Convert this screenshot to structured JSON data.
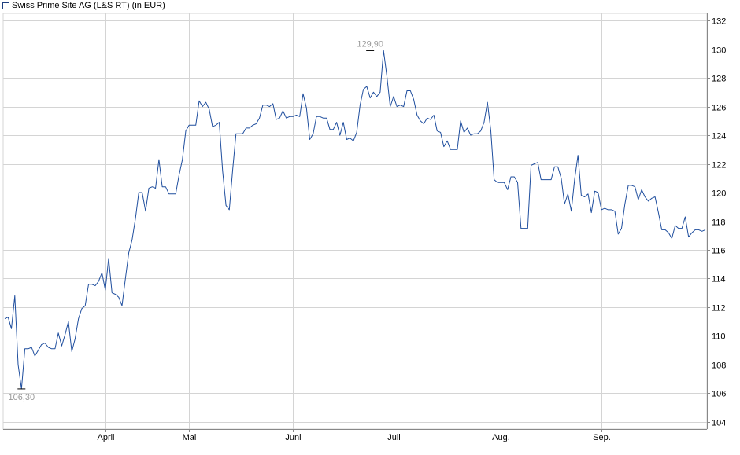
{
  "legend": {
    "label": "Swiss Prime Site AG (L&S RT) (in EUR)"
  },
  "colors": {
    "series": "#1f4e9e",
    "grid": "#d4d4d4",
    "axis": "#888888",
    "annotation": "#999999"
  },
  "chart_data": {
    "type": "line",
    "title": "",
    "xlabel": "",
    "ylabel": "",
    "grid": true,
    "legend_position": "top-left",
    "ylim": [
      103.5,
      132.5
    ],
    "y_ticks": [
      104,
      106,
      108,
      110,
      112,
      114,
      116,
      118,
      120,
      122,
      124,
      126,
      128,
      130,
      132
    ],
    "x_ticks": [
      {
        "label": "April",
        "index": 30
      },
      {
        "label": "Mai",
        "index": 55
      },
      {
        "label": "Juni",
        "index": 86
      },
      {
        "label": "Juli",
        "index": 116
      },
      {
        "label": "Aug.",
        "index": 148
      },
      {
        "label": "Sep.",
        "index": 178
      }
    ],
    "annotations": [
      {
        "text": "129,90",
        "index": 109,
        "value": 129.9,
        "position": "above"
      },
      {
        "text": "106,30",
        "index": 5,
        "value": 106.3,
        "position": "below"
      }
    ],
    "series": [
      {
        "name": "Swiss Prime Site AG (L&S RT) (in EUR)",
        "values": [
          111.2,
          111.3,
          110.5,
          112.8,
          108.0,
          106.3,
          109.1,
          109.1,
          109.2,
          108.6,
          109.0,
          109.4,
          109.5,
          109.2,
          109.1,
          109.1,
          110.2,
          109.3,
          110.1,
          111.0,
          108.9,
          109.8,
          111.2,
          111.9,
          112.1,
          113.6,
          113.6,
          113.5,
          113.8,
          114.4,
          113.2,
          115.4,
          113.0,
          112.9,
          112.7,
          112.1,
          114.0,
          115.8,
          116.7,
          118.2,
          120.0,
          120.0,
          118.7,
          120.3,
          120.4,
          120.3,
          122.3,
          120.4,
          120.4,
          119.9,
          119.9,
          119.9,
          121.2,
          122.3,
          124.3,
          124.7,
          124.7,
          124.7,
          126.4,
          126.0,
          126.3,
          125.8,
          124.6,
          124.7,
          124.9,
          121.5,
          119.1,
          118.8,
          121.6,
          124.1,
          124.1,
          124.1,
          124.5,
          124.5,
          124.7,
          124.8,
          125.2,
          126.1,
          126.1,
          126.0,
          126.2,
          125.1,
          125.2,
          125.7,
          125.2,
          125.3,
          125.3,
          125.4,
          125.3,
          126.9,
          125.9,
          123.7,
          124.1,
          125.3,
          125.3,
          125.2,
          125.2,
          124.4,
          124.4,
          124.9,
          124.0,
          124.9,
          123.7,
          123.8,
          123.6,
          124.2,
          126.1,
          127.2,
          127.4,
          126.6,
          127.0,
          126.7,
          127.0,
          129.9,
          128.1,
          126.0,
          126.7,
          126.0,
          126.1,
          126.0,
          127.1,
          127.1,
          126.5,
          125.4,
          125.0,
          124.8,
          125.2,
          125.1,
          125.4,
          124.3,
          124.2,
          123.2,
          123.6,
          123.0,
          123.0,
          123.0,
          125.0,
          124.2,
          124.5,
          124.0,
          124.1,
          124.1,
          124.3,
          124.9,
          126.3,
          124.3,
          120.9,
          120.7,
          120.7,
          120.7,
          120.2,
          121.1,
          121.1,
          120.7,
          117.5,
          117.5,
          117.5,
          121.9,
          122.0,
          122.1,
          120.9,
          120.9,
          120.9,
          120.9,
          121.8,
          121.8,
          121.0,
          119.2,
          119.9,
          118.7,
          120.9,
          122.6,
          119.8,
          119.7,
          119.9,
          118.6,
          120.1,
          120.0,
          118.8,
          118.9,
          118.8,
          118.8,
          118.7,
          117.1,
          117.5,
          119.2,
          120.5,
          120.5,
          120.4,
          119.5,
          120.2,
          119.7,
          119.4,
          119.6,
          119.7,
          118.6,
          117.4,
          117.4,
          117.2,
          116.8,
          117.7,
          117.5,
          117.5,
          118.3,
          116.9,
          117.2,
          117.4,
          117.4,
          117.3,
          117.4
        ]
      }
    ]
  }
}
